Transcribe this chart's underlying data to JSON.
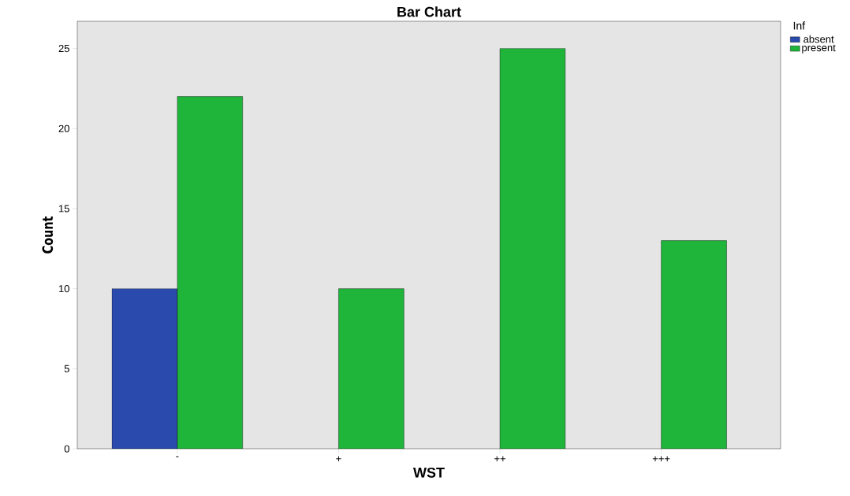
{
  "chart_data": {
    "type": "bar",
    "title": "Bar Chart",
    "xlabel": "WST",
    "ylabel": "Count",
    "legend_title": "Inf",
    "categories": [
      "-",
      "+",
      "++",
      "+++"
    ],
    "series": [
      {
        "name": "absent",
        "color": "#2a4aad",
        "values": [
          10,
          null,
          null,
          null
        ]
      },
      {
        "name": "present",
        "color": "#1fb53a",
        "values": [
          22,
          10,
          25,
          13
        ]
      }
    ],
    "ylim": [
      0,
      26.7
    ],
    "yticks": [
      0,
      5,
      10,
      15,
      20,
      25
    ],
    "legend": "top right",
    "grid": false
  }
}
